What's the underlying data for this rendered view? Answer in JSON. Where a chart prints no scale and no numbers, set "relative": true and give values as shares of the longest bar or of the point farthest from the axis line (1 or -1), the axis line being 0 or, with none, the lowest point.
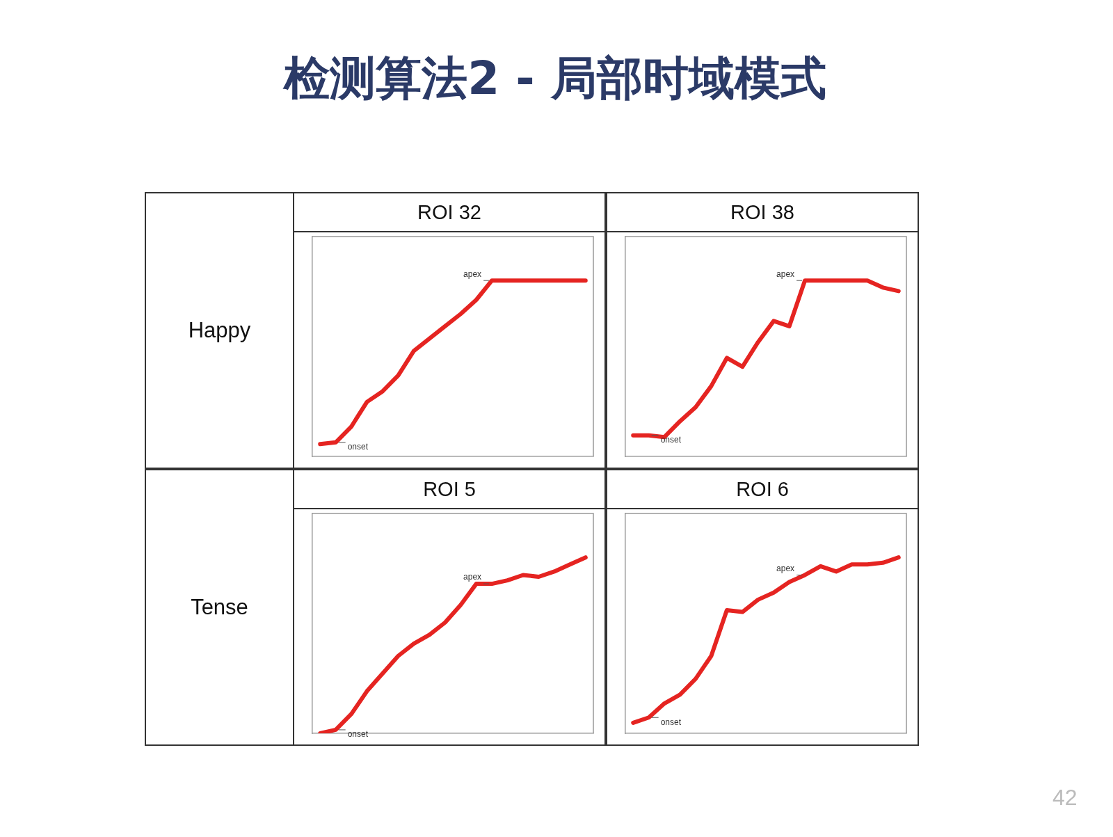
{
  "chart_data": [
    {
      "type": "other",
      "title": "检测算法2 - 局部时域模式",
      "annotations": [
        "42"
      ]
    },
    {
      "type": "line",
      "title": "ROI 32",
      "ylabel": "Happy",
      "relative": true,
      "marker": "none",
      "line_style": "solid",
      "legend": false,
      "grid": false,
      "tick_labels": false,
      "categories": [
        null,
        null,
        null,
        null,
        null,
        null,
        null,
        null,
        null,
        null,
        null,
        null,
        null,
        null,
        null,
        null,
        null,
        null
      ],
      "series": [
        {
          "color": "#e52421",
          "values": [
            0.07,
            0.08,
            0.17,
            0.31,
            0.37,
            0.46,
            0.6,
            0.67,
            0.74,
            0.81,
            0.89,
            1,
            1,
            1,
            1,
            1,
            1,
            1
          ]
        }
      ],
      "annotations": [
        "onset",
        "apex"
      ]
    },
    {
      "type": "line",
      "title": "ROI 38",
      "relative": true,
      "marker": "none",
      "line_style": "solid",
      "legend": false,
      "grid": false,
      "tick_labels": false,
      "categories": [
        null,
        null,
        null,
        null,
        null,
        null,
        null,
        null,
        null,
        null,
        null,
        null,
        null,
        null,
        null,
        null,
        null,
        null
      ],
      "series": [
        {
          "color": "#e52421",
          "values": [
            0.12,
            0.12,
            0.11,
            0.2,
            0.28,
            0.4,
            0.56,
            0.51,
            0.65,
            0.77,
            0.74,
            1,
            1,
            1,
            1,
            1,
            0.96,
            0.94
          ]
        }
      ],
      "annotations": [
        "onset",
        "apex"
      ]
    },
    {
      "type": "line",
      "title": "ROI 5",
      "ylabel": "Tense",
      "relative": true,
      "marker": "none",
      "line_style": "solid",
      "legend": false,
      "grid": false,
      "tick_labels": false,
      "categories": [
        null,
        null,
        null,
        null,
        null,
        null,
        null,
        null,
        null,
        null,
        null,
        null,
        null,
        null,
        null,
        null,
        null,
        null
      ],
      "series": [
        {
          "color": "#e52421",
          "values": [
            0,
            0.02,
            0.11,
            0.24,
            0.34,
            0.44,
            0.51,
            0.56,
            0.63,
            0.73,
            0.85,
            0.85,
            0.87,
            0.9,
            0.89,
            0.92,
            0.96,
            1
          ]
        }
      ],
      "annotations": [
        "onset",
        "apex"
      ]
    },
    {
      "type": "line",
      "title": "ROI 6",
      "relative": true,
      "marker": "none",
      "line_style": "solid",
      "legend": false,
      "grid": false,
      "tick_labels": false,
      "categories": [
        null,
        null,
        null,
        null,
        null,
        null,
        null,
        null,
        null,
        null,
        null,
        null,
        null,
        null,
        null,
        null,
        null,
        null
      ],
      "series": [
        {
          "color": "#e52421",
          "values": [
            0.06,
            0.09,
            0.17,
            0.22,
            0.31,
            0.44,
            0.7,
            0.69,
            0.76,
            0.8,
            0.86,
            0.9,
            0.95,
            0.92,
            0.96,
            0.96,
            0.97,
            1
          ]
        }
      ],
      "annotations": [
        "onset",
        "apex"
      ]
    }
  ]
}
